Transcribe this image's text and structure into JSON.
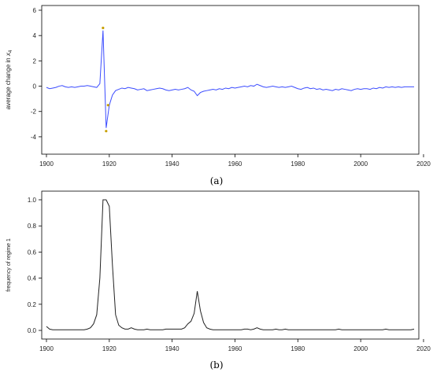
{
  "captions": {
    "a": "(a)",
    "b": "(b)"
  },
  "colors": {
    "panel_a_line": "#3b4cff",
    "panel_a_marker": "#c8a000",
    "panel_b_line": "#222222",
    "axis": "#000000"
  },
  "chart_data": [
    {
      "type": "line",
      "ylabel_text": "average change in",
      "ylabel_sub": "4",
      "ylabel_var": "x",
      "xlim": [
        1900,
        2017
      ],
      "ylim": [
        -5,
        6
      ],
      "x_ticks": [
        1900,
        1920,
        1940,
        1960,
        1980,
        2000,
        2020
      ],
      "y_ticks": [
        -4,
        -2,
        0,
        2,
        4,
        6
      ],
      "x": [
        1900,
        1901,
        1902,
        1903,
        1904,
        1905,
        1906,
        1907,
        1908,
        1909,
        1910,
        1911,
        1912,
        1913,
        1914,
        1915,
        1916,
        1917,
        1918,
        1919,
        1920,
        1921,
        1922,
        1923,
        1924,
        1925,
        1926,
        1927,
        1928,
        1929,
        1930,
        1931,
        1932,
        1933,
        1934,
        1935,
        1936,
        1937,
        1938,
        1939,
        1940,
        1941,
        1942,
        1943,
        1944,
        1945,
        1946,
        1947,
        1948,
        1949,
        1950,
        1951,
        1952,
        1953,
        1954,
        1955,
        1956,
        1957,
        1958,
        1959,
        1960,
        1961,
        1962,
        1963,
        1964,
        1965,
        1966,
        1967,
        1968,
        1969,
        1970,
        1971,
        1972,
        1973,
        1974,
        1975,
        1976,
        1977,
        1978,
        1979,
        1980,
        1981,
        1982,
        1983,
        1984,
        1985,
        1986,
        1987,
        1988,
        1989,
        1990,
        1991,
        1992,
        1993,
        1994,
        1995,
        1996,
        1997,
        1998,
        1999,
        2000,
        2001,
        2002,
        2003,
        2004,
        2005,
        2006,
        2007,
        2008,
        2009,
        2010,
        2011,
        2012,
        2013,
        2014,
        2015,
        2016,
        2017
      ],
      "y": [
        -0.1,
        -0.2,
        -0.15,
        -0.1,
        0.0,
        0.05,
        -0.05,
        -0.1,
        -0.05,
        -0.1,
        -0.05,
        0.0,
        0.0,
        0.05,
        0.0,
        -0.05,
        -0.1,
        0.2,
        4.4,
        -3.3,
        -1.5,
        -0.7,
        -0.35,
        -0.25,
        -0.15,
        -0.2,
        -0.1,
        -0.15,
        -0.2,
        -0.3,
        -0.25,
        -0.2,
        -0.35,
        -0.3,
        -0.25,
        -0.2,
        -0.15,
        -0.2,
        -0.3,
        -0.35,
        -0.3,
        -0.25,
        -0.3,
        -0.25,
        -0.2,
        -0.1,
        -0.3,
        -0.4,
        -0.75,
        -0.5,
        -0.4,
        -0.35,
        -0.3,
        -0.25,
        -0.3,
        -0.2,
        -0.25,
        -0.15,
        -0.2,
        -0.1,
        -0.15,
        -0.1,
        -0.05,
        0.0,
        -0.05,
        0.05,
        0.0,
        0.15,
        0.05,
        -0.05,
        -0.1,
        -0.05,
        0.0,
        -0.05,
        -0.1,
        -0.05,
        -0.1,
        -0.05,
        0.0,
        -0.1,
        -0.2,
        -0.25,
        -0.15,
        -0.1,
        -0.2,
        -0.15,
        -0.25,
        -0.2,
        -0.3,
        -0.25,
        -0.3,
        -0.35,
        -0.25,
        -0.3,
        -0.2,
        -0.25,
        -0.3,
        -0.35,
        -0.25,
        -0.2,
        -0.25,
        -0.2,
        -0.2,
        -0.25,
        -0.15,
        -0.2,
        -0.1,
        -0.15,
        -0.05,
        -0.1,
        -0.05,
        -0.1,
        -0.05,
        -0.1,
        -0.05,
        -0.05,
        -0.05,
        -0.05
      ],
      "markers": [
        {
          "x": 1918,
          "y": 4.6
        },
        {
          "x": 1919.6,
          "y": -1.5
        },
        {
          "x": 1919,
          "y": -3.55
        }
      ]
    },
    {
      "type": "line",
      "ylabel": "frequency of regime 1",
      "xlim": [
        1900,
        2017
      ],
      "ylim": [
        -0.03,
        1.03
      ],
      "x_ticks": [
        1900,
        1920,
        1940,
        1960,
        1980,
        2000,
        2020
      ],
      "y_ticks": [
        "0.0",
        "0.2",
        "0.4",
        "0.6",
        "0.8",
        "1.0"
      ],
      "x": [
        1900,
        1901,
        1902,
        1903,
        1904,
        1905,
        1906,
        1907,
        1908,
        1909,
        1910,
        1911,
        1912,
        1913,
        1914,
        1915,
        1916,
        1917,
        1918,
        1919,
        1920,
        1921,
        1922,
        1923,
        1924,
        1925,
        1926,
        1927,
        1928,
        1929,
        1930,
        1931,
        1932,
        1933,
        1934,
        1935,
        1936,
        1937,
        1938,
        1939,
        1940,
        1941,
        1942,
        1943,
        1944,
        1945,
        1946,
        1947,
        1948,
        1949,
        1950,
        1951,
        1952,
        1953,
        1954,
        1955,
        1956,
        1957,
        1958,
        1959,
        1960,
        1961,
        1962,
        1963,
        1964,
        1965,
        1966,
        1967,
        1968,
        1969,
        1970,
        1971,
        1972,
        1973,
        1974,
        1975,
        1976,
        1977,
        1978,
        1979,
        1980,
        1981,
        1982,
        1983,
        1984,
        1985,
        1986,
        1987,
        1988,
        1989,
        1990,
        1991,
        1992,
        1993,
        1994,
        1995,
        1996,
        1997,
        1998,
        1999,
        2000,
        2001,
        2002,
        2003,
        2004,
        2005,
        2006,
        2007,
        2008,
        2009,
        2010,
        2011,
        2012,
        2013,
        2014,
        2015,
        2016,
        2017
      ],
      "y": [
        0.03,
        0.01,
        0.005,
        0.005,
        0.005,
        0.005,
        0.005,
        0.005,
        0.005,
        0.005,
        0.005,
        0.005,
        0.005,
        0.01,
        0.02,
        0.05,
        0.12,
        0.4,
        1.0,
        1.0,
        0.95,
        0.5,
        0.12,
        0.04,
        0.02,
        0.01,
        0.01,
        0.02,
        0.01,
        0.005,
        0.005,
        0.005,
        0.01,
        0.005,
        0.005,
        0.005,
        0.005,
        0.005,
        0.01,
        0.01,
        0.01,
        0.01,
        0.01,
        0.01,
        0.02,
        0.05,
        0.07,
        0.13,
        0.3,
        0.15,
        0.06,
        0.02,
        0.01,
        0.005,
        0.005,
        0.005,
        0.005,
        0.005,
        0.005,
        0.005,
        0.005,
        0.005,
        0.005,
        0.01,
        0.01,
        0.005,
        0.01,
        0.02,
        0.01,
        0.005,
        0.005,
        0.005,
        0.005,
        0.01,
        0.005,
        0.005,
        0.01,
        0.005,
        0.005,
        0.005,
        0.005,
        0.005,
        0.005,
        0.005,
        0.005,
        0.005,
        0.005,
        0.005,
        0.005,
        0.005,
        0.005,
        0.005,
        0.005,
        0.01,
        0.005,
        0.005,
        0.005,
        0.005,
        0.005,
        0.005,
        0.005,
        0.005,
        0.005,
        0.005,
        0.005,
        0.005,
        0.005,
        0.005,
        0.01,
        0.005,
        0.005,
        0.005,
        0.005,
        0.005,
        0.005,
        0.005,
        0.005,
        0.01
      ]
    }
  ]
}
